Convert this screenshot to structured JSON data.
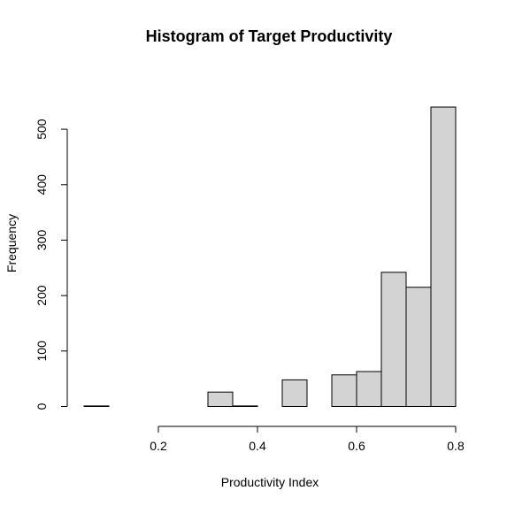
{
  "chart_data": {
    "type": "bar",
    "subtype": "histogram",
    "title": "Histogram of Target Productivity",
    "xlabel": "Productivity Index",
    "ylabel": "Frequency",
    "bins": [
      {
        "x0": 0.05,
        "x1": 0.1,
        "count": 1
      },
      {
        "x0": 0.1,
        "x1": 0.15,
        "count": 0
      },
      {
        "x0": 0.15,
        "x1": 0.2,
        "count": 0
      },
      {
        "x0": 0.2,
        "x1": 0.25,
        "count": 0
      },
      {
        "x0": 0.25,
        "x1": 0.3,
        "count": 0
      },
      {
        "x0": 0.3,
        "x1": 0.35,
        "count": 26
      },
      {
        "x0": 0.35,
        "x1": 0.4,
        "count": 1
      },
      {
        "x0": 0.4,
        "x1": 0.45,
        "count": 0
      },
      {
        "x0": 0.45,
        "x1": 0.5,
        "count": 48
      },
      {
        "x0": 0.5,
        "x1": 0.55,
        "count": 0
      },
      {
        "x0": 0.55,
        "x1": 0.6,
        "count": 57
      },
      {
        "x0": 0.6,
        "x1": 0.65,
        "count": 63
      },
      {
        "x0": 0.65,
        "x1": 0.7,
        "count": 242
      },
      {
        "x0": 0.7,
        "x1": 0.75,
        "count": 215
      },
      {
        "x0": 0.75,
        "x1": 0.8,
        "count": 540
      }
    ],
    "xticks": [
      "0.2",
      "0.4",
      "0.6",
      "0.8"
    ],
    "yticks": [
      "0",
      "100",
      "200",
      "300",
      "400",
      "500"
    ],
    "xlim": [
      0.05,
      0.8
    ],
    "ylim": [
      0,
      540
    ],
    "grid": false,
    "bar_color": "#d3d3d3",
    "edge_color": "#000000"
  }
}
